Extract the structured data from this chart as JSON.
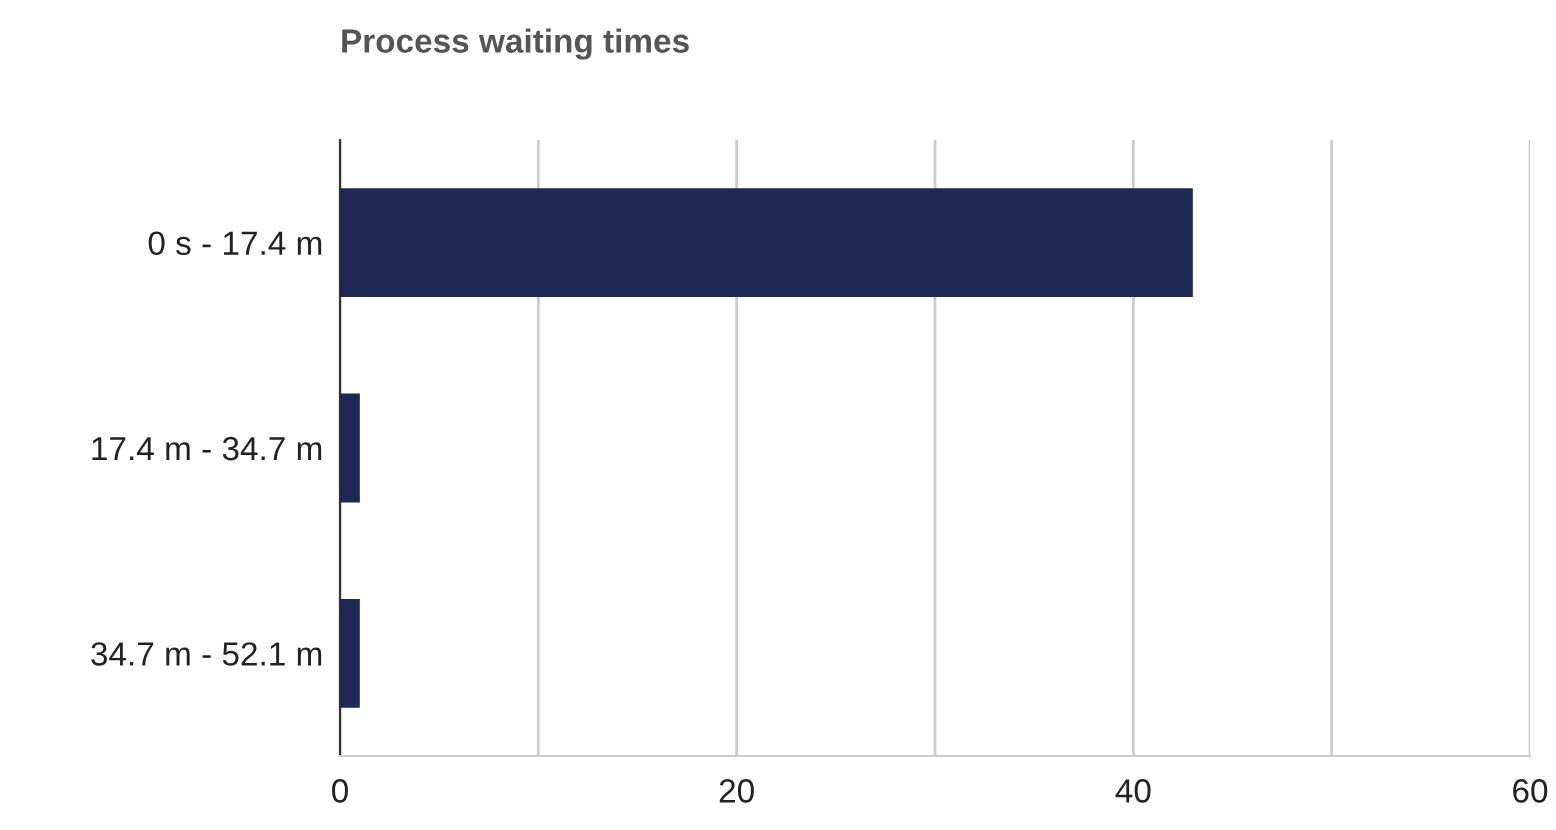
{
  "chart_data": {
    "type": "bar",
    "orientation": "horizontal",
    "title": "Process waiting times",
    "categories": [
      "0 s - 17.4 m",
      "17.4 m - 34.7 m",
      "34.7 m - 52.1 m"
    ],
    "values": [
      43,
      1,
      1
    ],
    "color": "#1f2853",
    "xlim": [
      0,
      60
    ],
    "xticks": [
      0,
      {
        "value": 10,
        "label": null
      },
      20,
      {
        "value": 30,
        "label": null
      },
      40,
      {
        "value": 50,
        "label": null
      },
      60
    ],
    "grid": "x",
    "legend": false
  }
}
